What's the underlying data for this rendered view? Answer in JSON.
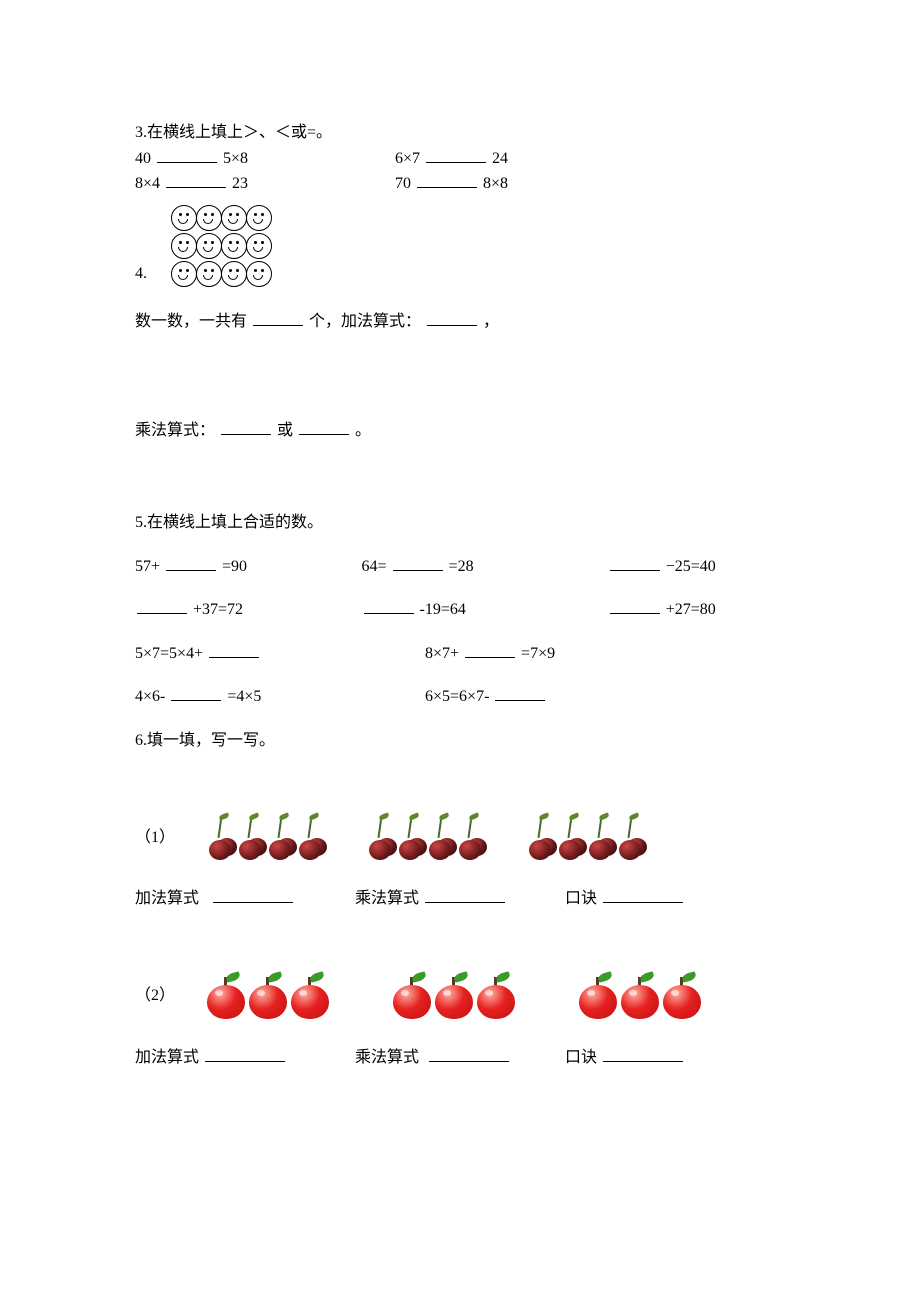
{
  "q3": {
    "title": "3.在横线上填上＞、＜或=。",
    "r1a_left": "40",
    "r1a_right": "5×8",
    "r1b_left": "6×7",
    "r1b_right": "24",
    "r2a_left": "8×4",
    "r2a_right": "23",
    "r2b_left": "70",
    "r2b_right": "8×8"
  },
  "q4": {
    "label": "4.",
    "rows": 3,
    "cols": 4,
    "count_text_a": "数一数，一共有",
    "count_text_b": "个，加法算式：",
    "count_text_c": "，",
    "mult_a": "乘法算式：",
    "mult_b": "或",
    "mult_c": "。"
  },
  "q5": {
    "title": "5.在横线上填上合适的数。",
    "r1": {
      "a": "57+",
      "a2": "=90",
      "b": "64=",
      "b2": "=28",
      "c": "",
      "c2": "−25=40"
    },
    "r2": {
      "a": "",
      "a2": "+37=72",
      "b": "",
      "b2": "-19=64",
      "c": "",
      "c2": "+27=80"
    },
    "r3": {
      "a": "5×7=5×4+",
      "b": "8×7+",
      "b2": "=7×9"
    },
    "r4": {
      "a": "4×6-",
      "a2": "=4×5",
      "b": "6×5=6×7-"
    }
  },
  "q6": {
    "title": "6.填一填，写一写。",
    "sub1": "（1）",
    "sub2": "（2）",
    "add_label": "加法算式",
    "mult_label": "乘法算式",
    "koujue_label": "口诀",
    "cherry_groups": 3,
    "cherry_per_group": 4,
    "apple_groups": 3,
    "apple_per_group": 3
  },
  "colors": {
    "text": "#000000",
    "bg": "#ffffff",
    "cherry_dark": "#5a1414",
    "apple_red": "#e62020",
    "leaf_green": "#3a9a2a"
  }
}
